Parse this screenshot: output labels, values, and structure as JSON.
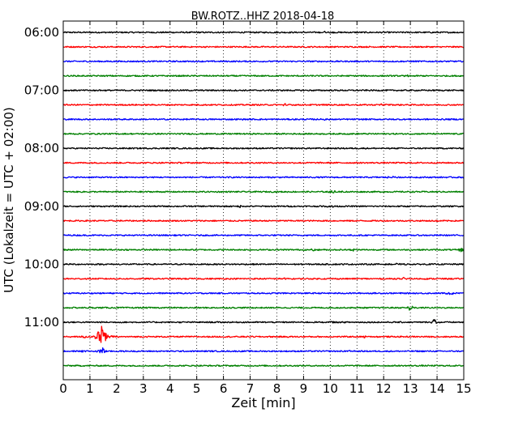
{
  "chart_data": {
    "type": "line",
    "title": "BW.ROTZ..HHZ 2018-04-18",
    "xlabel": "Zeit  [min]",
    "ylabel": "UTC (Lokalzeit = UTC + 02:00)",
    "xlim": [
      0,
      15
    ],
    "x_ticks": [
      "0",
      "1",
      "2",
      "3",
      "4",
      "5",
      "6",
      "7",
      "8",
      "9",
      "10",
      "11",
      "12",
      "13",
      "14",
      "15"
    ],
    "y_ticks": [
      {
        "label": "06:00",
        "row": 0
      },
      {
        "label": "07:00",
        "row": 4
      },
      {
        "label": "08:00",
        "row": 8
      },
      {
        "label": "09:00",
        "row": 12
      },
      {
        "label": "10:00",
        "row": 16
      },
      {
        "label": "11:00",
        "row": 20
      }
    ],
    "grid": {
      "vertical": true,
      "style": "dotted"
    },
    "trace_minutes": 15,
    "colors": [
      "#000000",
      "#ff0000",
      "#0000ff",
      "#008000"
    ],
    "series": [
      {
        "start": "06:00",
        "events": [
          {
            "x": 9.8,
            "amp": 0.15
          }
        ]
      },
      {
        "start": "06:15",
        "events": []
      },
      {
        "start": "06:30",
        "events": []
      },
      {
        "start": "06:45",
        "events": [
          {
            "x": 12.9,
            "amp": 0.15
          }
        ]
      },
      {
        "start": "07:00",
        "events": [
          {
            "x": 1.2,
            "amp": 0.1
          }
        ]
      },
      {
        "start": "07:15",
        "events": [
          {
            "x": 8.3,
            "amp": 0.2
          },
          {
            "x": 12.0,
            "amp": 0.2
          }
        ]
      },
      {
        "start": "07:30",
        "events": [
          {
            "x": 9.8,
            "amp": 0.1
          }
        ]
      },
      {
        "start": "07:45",
        "events": []
      },
      {
        "start": "08:00",
        "events": [
          {
            "x": 12.2,
            "amp": 0.2
          }
        ]
      },
      {
        "start": "08:15",
        "events": []
      },
      {
        "start": "08:30",
        "events": [
          {
            "x": 12.3,
            "amp": 0.2
          }
        ]
      },
      {
        "start": "08:45",
        "events": [
          {
            "x": 10.1,
            "amp": 0.2
          },
          {
            "x": 10.4,
            "amp": 0.15
          }
        ]
      },
      {
        "start": "09:00",
        "events": [
          {
            "x": 6.6,
            "amp": 0.2
          },
          {
            "x": 10.0,
            "amp": 0.25
          }
        ]
      },
      {
        "start": "09:15",
        "events": [
          {
            "x": 14.0,
            "amp": 0.1
          }
        ]
      },
      {
        "start": "09:30",
        "events": []
      },
      {
        "start": "09:45",
        "events": [
          {
            "x": 9.4,
            "amp": 0.25
          },
          {
            "x": 10.9,
            "amp": 0.25
          },
          {
            "x": 14.9,
            "amp": 0.35
          }
        ]
      },
      {
        "start": "10:00",
        "events": [
          {
            "x": 12.5,
            "amp": 0.1
          }
        ]
      },
      {
        "start": "10:15",
        "events": [
          {
            "x": 8.3,
            "amp": 0.1
          },
          {
            "x": 12.7,
            "amp": 0.2
          }
        ]
      },
      {
        "start": "10:30",
        "events": [
          {
            "x": 14.5,
            "amp": 0.35
          }
        ]
      },
      {
        "start": "10:45",
        "events": [
          {
            "x": 13.0,
            "amp": 0.5
          }
        ]
      },
      {
        "start": "11:00",
        "events": [
          {
            "x": 10.0,
            "amp": 0.15
          },
          {
            "x": 13.9,
            "amp": 0.6
          }
        ]
      },
      {
        "start": "11:15",
        "events": [
          {
            "x": 0.8,
            "amp": 0.2
          },
          {
            "x": 1.45,
            "amp": 1.8
          },
          {
            "x": 11.3,
            "amp": 0.2
          }
        ]
      },
      {
        "start": "11:30",
        "events": [
          {
            "x": 0.8,
            "amp": 0.2
          },
          {
            "x": 1.45,
            "amp": 0.8
          },
          {
            "x": 10.7,
            "amp": 0.1
          }
        ]
      },
      {
        "start": "11:45",
        "events": []
      }
    ]
  }
}
